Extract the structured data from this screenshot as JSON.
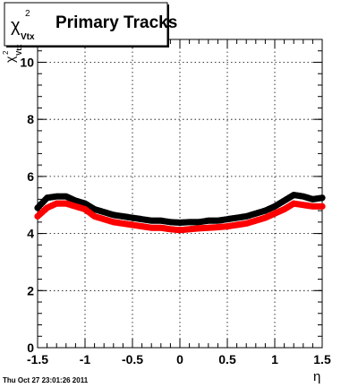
{
  "chart_data": {
    "type": "scatter",
    "title": {
      "symbol": "χ",
      "superscript": "2",
      "subscript": "Vtx",
      "text": "Primary Tracks"
    },
    "xlabel": "η",
    "ylabel": {
      "symbol": "χ",
      "superscript": "2",
      "subscript": "Vtx"
    },
    "xlim": [
      -1.5,
      1.5
    ],
    "ylim": [
      0,
      10.8
    ],
    "xticks": [
      -1.5,
      -1,
      -0.5,
      0,
      0.5,
      1,
      1.5
    ],
    "xtick_labels": [
      "-1.5",
      "-1",
      "-0.5",
      "0",
      "0.5",
      "1",
      "1.5"
    ],
    "yticks": [
      0,
      2,
      4,
      6,
      8,
      10
    ],
    "ytick_labels": [
      "0",
      "2",
      "4",
      "6",
      "8",
      "10"
    ],
    "grid": true,
    "timestamp": "Thu Oct 27 23:01:26 2011",
    "series": [
      {
        "color": "#000000",
        "x": [
          -1.5,
          -1.4,
          -1.3,
          -1.2,
          -1.1,
          -1.0,
          -0.9,
          -0.8,
          -0.7,
          -0.6,
          -0.5,
          -0.4,
          -0.3,
          -0.2,
          -0.1,
          0.0,
          0.1,
          0.2,
          0.3,
          0.4,
          0.5,
          0.6,
          0.7,
          0.8,
          0.9,
          1.0,
          1.1,
          1.2,
          1.3,
          1.4,
          1.5
        ],
        "y": [
          4.9,
          5.25,
          5.3,
          5.3,
          5.15,
          5.05,
          4.85,
          4.75,
          4.65,
          4.6,
          4.55,
          4.5,
          4.45,
          4.45,
          4.4,
          4.38,
          4.4,
          4.4,
          4.45,
          4.45,
          4.5,
          4.55,
          4.6,
          4.7,
          4.8,
          4.95,
          5.15,
          5.35,
          5.3,
          5.2,
          5.25
        ]
      },
      {
        "color": "#ff0000",
        "x": [
          -1.5,
          -1.4,
          -1.3,
          -1.2,
          -1.1,
          -1.0,
          -0.9,
          -0.8,
          -0.7,
          -0.6,
          -0.5,
          -0.4,
          -0.3,
          -0.2,
          -0.1,
          0.0,
          0.1,
          0.2,
          0.3,
          0.4,
          0.5,
          0.6,
          0.7,
          0.8,
          0.9,
          1.0,
          1.1,
          1.2,
          1.3,
          1.4,
          1.5
        ],
        "y": [
          4.6,
          4.9,
          5.05,
          5.05,
          4.95,
          4.85,
          4.6,
          4.5,
          4.4,
          4.35,
          4.3,
          4.25,
          4.2,
          4.2,
          4.15,
          4.12,
          4.15,
          4.18,
          4.2,
          4.22,
          4.25,
          4.3,
          4.35,
          4.45,
          4.55,
          4.7,
          4.85,
          5.05,
          5.0,
          4.95,
          4.95
        ]
      }
    ]
  }
}
